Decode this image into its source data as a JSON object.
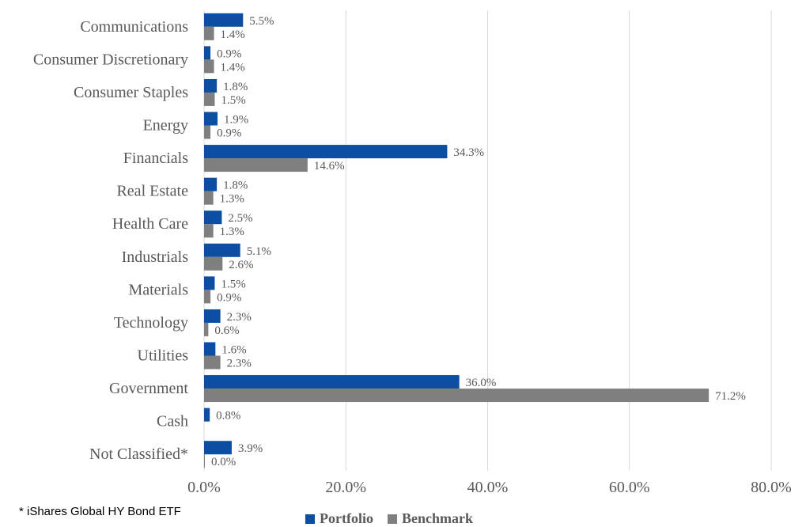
{
  "chart_data": {
    "type": "bar",
    "orientation": "horizontal",
    "categories": [
      "Communications",
      "Consumer Discretionary",
      "Consumer Staples",
      "Energy",
      "Financials",
      "Real Estate",
      "Health Care",
      "Industrials",
      "Materials",
      "Technology",
      "Utilities",
      "Government",
      "Cash",
      "Not Classified*"
    ],
    "series": [
      {
        "name": "Portfolio",
        "color": "#0B4EA2",
        "values": [
          5.5,
          0.9,
          1.8,
          1.9,
          34.3,
          1.8,
          2.5,
          5.1,
          1.5,
          2.3,
          1.6,
          36.0,
          0.8,
          3.9
        ],
        "labels": [
          "5.5%",
          "0.9%",
          "1.8%",
          "1.9%",
          "34.3%",
          "1.8%",
          "2.5%",
          "5.1%",
          "1.5%",
          "2.3%",
          "1.6%",
          "36.0%",
          "0.8%",
          "3.9%"
        ]
      },
      {
        "name": "Benchmark",
        "color": "#7F7F7F",
        "values": [
          1.4,
          1.4,
          1.5,
          0.9,
          14.6,
          1.3,
          1.3,
          2.6,
          0.9,
          0.6,
          2.3,
          71.2,
          null,
          0.0
        ],
        "labels": [
          "1.4%",
          "1.4%",
          "1.5%",
          "0.9%",
          "14.6%",
          "1.3%",
          "1.3%",
          "2.6%",
          "0.9%",
          "0.6%",
          "2.3%",
          "71.2%",
          "",
          "0.0%"
        ]
      }
    ],
    "xlim": [
      0,
      80
    ],
    "xticks": [
      0,
      20,
      40,
      60,
      80
    ],
    "xtick_labels": [
      "0.0%",
      "20.0%",
      "40.0%",
      "60.0%",
      "80.0%"
    ],
    "grid": true,
    "legend_position": "bottom"
  },
  "footnote": "* iShares Global HY Bond ETF"
}
